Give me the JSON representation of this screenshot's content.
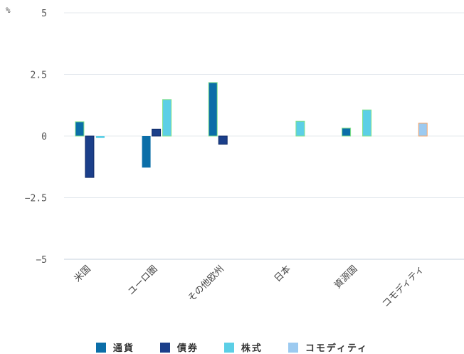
{
  "chart_data": {
    "type": "bar",
    "unit": "%",
    "categories": [
      "米国",
      "ユーロ圏",
      "その他欧州",
      "日本",
      "資源国",
      "コモディティ"
    ],
    "series": [
      {
        "name": "通貨",
        "color": "#0b6ea8",
        "values": [
          0.58,
          -1.28,
          2.17,
          null,
          0.32,
          null
        ]
      },
      {
        "name": "債券",
        "color": "#1b3f8a",
        "values": [
          -1.68,
          0.28,
          -0.33,
          null,
          null,
          null
        ]
      },
      {
        "name": "株式",
        "color": "#5ccfe6",
        "values": [
          -0.08,
          1.48,
          null,
          0.6,
          1.06,
          null
        ]
      },
      {
        "name": "コモディティ",
        "color": "#9ccaf0",
        "values": [
          null,
          null,
          null,
          null,
          null,
          0.52
        ]
      }
    ],
    "ylim": [
      -5,
      5
    ],
    "yticks": [
      5,
      2.5,
      0,
      -2.5,
      -5
    ],
    "ytick_labels": [
      "5",
      "2.5",
      "0",
      "−2.5",
      "−5"
    ],
    "grid": true,
    "legend_position": "bottom"
  }
}
